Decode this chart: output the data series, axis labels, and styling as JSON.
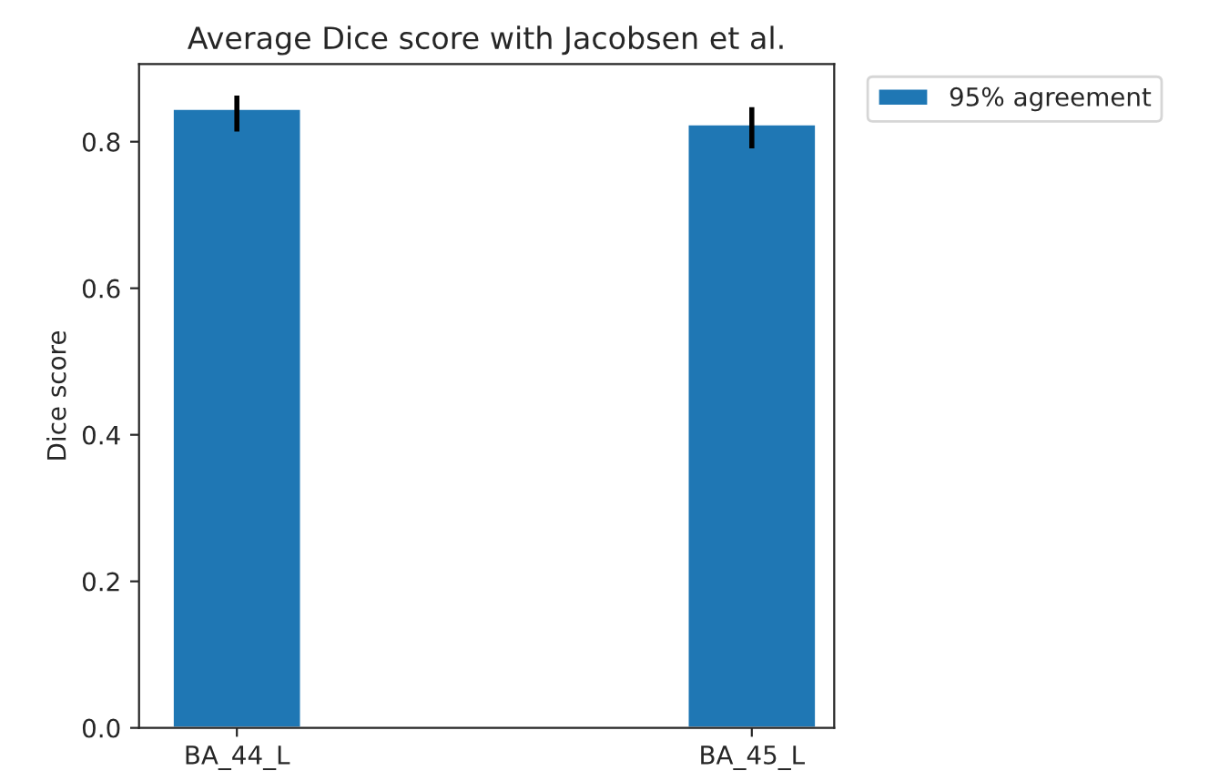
{
  "chart_data": {
    "type": "bar",
    "title": "Average Dice score with Jacobsen et al.",
    "ylabel": "Dice score",
    "categories": [
      "BA_44_L",
      "BA_45_L"
    ],
    "series": [
      {
        "name": "95% agreement",
        "color": "#1f77b4",
        "values": [
          0.845,
          0.824
        ],
        "errors": [
          [
            0.814,
            0.863
          ],
          [
            0.791,
            0.847
          ]
        ]
      }
    ],
    "ylim": [
      0,
      0.906
    ],
    "yticks": [
      {
        "value": 0,
        "label": "0.0"
      },
      0.2,
      0.4,
      0.6,
      0.8
    ],
    "legend": "top right",
    "grid": false
  }
}
